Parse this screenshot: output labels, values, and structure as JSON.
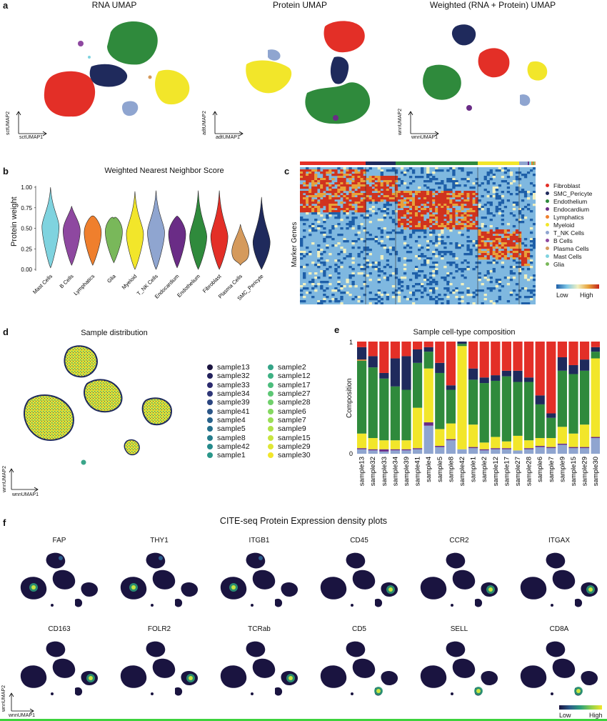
{
  "panel_letters": {
    "a": "a",
    "b": "b",
    "c": "c",
    "d": "d",
    "e": "e",
    "f": "f"
  },
  "panel_a": {
    "titles": [
      "RNA UMAP",
      "Protein UMAP",
      "Weighted (RNA + Protein) UMAP"
    ],
    "axes": [
      {
        "x": "sctUMAP1",
        "y": "sctUMAP2"
      },
      {
        "x": "adtUMAP1",
        "y": "adtUMAP2"
      },
      {
        "x": "wnnUMAP1",
        "y": "wnnUMAP2"
      }
    ]
  },
  "colors": {
    "Fibroblast": "#e32f27",
    "SMC_Pericyte": "#1f2a5c",
    "Endothelium": "#2f8a3c",
    "Endocardium": "#6a2c86",
    "Lymphatics": "#ef7f2d",
    "Myeloid": "#f2e62a",
    "T_NK Cells": "#8fa5d0",
    "B Cells": "#8e48a0",
    "Plasma Cells": "#d59a5c",
    "Mast Cells": "#7fd3df",
    "Glia": "#79b85a"
  },
  "chart_data": [
    {
      "type": "violin",
      "panel": "b",
      "title": "Weighted Nearest Neighbor Score",
      "ylabel": "Protein weight",
      "ylim": [
        0,
        1
      ],
      "yticks": [
        "0.00",
        "0.25",
        "0.50",
        "0.75",
        "1.00"
      ],
      "categories": [
        "Mast Cells",
        "B Cells",
        "Lymphatics",
        "Glia",
        "Myeloid",
        "T_NK Cells",
        "Endocardium",
        "Endothelium",
        "Fibroblast",
        "Plasma Cells",
        "SMC_Pericyte"
      ],
      "medians": [
        0.52,
        0.47,
        0.45,
        0.46,
        0.43,
        0.45,
        0.43,
        0.4,
        0.4,
        0.22,
        0.33
      ],
      "max": [
        1.0,
        0.77,
        0.65,
        0.62,
        0.95,
        0.96,
        0.65,
        0.96,
        0.96,
        0.55,
        0.88
      ],
      "min": [
        0.02,
        0.05,
        0.05,
        0.08,
        0.0,
        0.0,
        0.02,
        0.0,
        0.0,
        0.05,
        0.0
      ]
    },
    {
      "type": "heatmap",
      "panel": "c",
      "ylabel": "Marker Genes",
      "legend": [
        "Fibroblast",
        "SMC_Pericyte",
        "Endothelium",
        "Endocardium",
        "Lymphatics",
        "Myeloid",
        "T_NK Cells",
        "B Cells",
        "Plasma Cells",
        "Mast Cells",
        "Glia"
      ],
      "colorbar": {
        "low": "Low",
        "high": "High"
      }
    },
    {
      "type": "scatter",
      "panel": "d",
      "title": "Sample distribution",
      "xlabel": "wnnUMAP1",
      "ylabel": "wnnUMAP2",
      "legend_col1": [
        "sample13",
        "sample32",
        "sample33",
        "sample34",
        "sample39",
        "sample41",
        "sample4",
        "sample5",
        "sample8",
        "sample42",
        "sample1"
      ],
      "legend_col2": [
        "sample2",
        "sample12",
        "sample17",
        "sample27",
        "sample28",
        "sample6",
        "sample7",
        "sample9",
        "sample15",
        "sample29",
        "sample30"
      ]
    },
    {
      "type": "bar",
      "stacked": true,
      "panel": "e",
      "title": "Sample cell-type composition",
      "ylabel": "Composition",
      "ylim": [
        0,
        1
      ],
      "yticks": [
        "0",
        "1"
      ],
      "categories": [
        "sample13",
        "sample32",
        "sample33",
        "sample34",
        "sample39",
        "sample41",
        "sample4",
        "sample5",
        "sample8",
        "sample42",
        "sample1",
        "sample2",
        "sample12",
        "sample17",
        "sample27",
        "sample28",
        "sample6",
        "sample7",
        "sample9",
        "sample15",
        "sample29",
        "sample30"
      ],
      "series": [
        {
          "name": "T_NK Cells",
          "values": [
            0.04,
            0.03,
            0.02,
            0.03,
            0.03,
            0.04,
            0.25,
            0.06,
            0.12,
            0.04,
            0.05,
            0.03,
            0.04,
            0.04,
            0.03,
            0.04,
            0.06,
            0.05,
            0.08,
            0.05,
            0.05,
            0.14
          ]
        },
        {
          "name": "Endocardium",
          "values": [
            0.01,
            0.01,
            0.02,
            0.01,
            0.01,
            0.01,
            0.03,
            0.01,
            0.01,
            0.0,
            0.01,
            0.01,
            0.01,
            0.01,
            0.0,
            0.01,
            0.01,
            0.01,
            0.01,
            0.01,
            0.01,
            0.01
          ]
        },
        {
          "name": "Myeloid",
          "values": [
            0.13,
            0.1,
            0.08,
            0.08,
            0.08,
            0.36,
            0.48,
            0.15,
            0.14,
            0.92,
            0.2,
            0.06,
            0.1,
            0.06,
            0.13,
            0.07,
            0.07,
            0.08,
            0.15,
            0.12,
            0.2,
            0.7
          ]
        },
        {
          "name": "Endothelium",
          "values": [
            0.65,
            0.63,
            0.55,
            0.48,
            0.45,
            0.4,
            0.15,
            0.5,
            0.3,
            0.02,
            0.4,
            0.53,
            0.5,
            0.58,
            0.48,
            0.52,
            0.3,
            0.18,
            0.5,
            0.53,
            0.48,
            0.06
          ]
        },
        {
          "name": "Lymphatics",
          "values": [
            0.01,
            0.0,
            0.0,
            0.0,
            0.0,
            0.0,
            0.0,
            0.0,
            0.0,
            0.0,
            0.0,
            0.0,
            0.0,
            0.0,
            0.0,
            0.0,
            0.0,
            0.0,
            0.0,
            0.0,
            0.0,
            0.0
          ]
        },
        {
          "name": "SMC_Pericyte",
          "values": [
            0.11,
            0.1,
            0.05,
            0.25,
            0.3,
            0.12,
            0.04,
            0.09,
            0.04,
            0.02,
            0.1,
            0.05,
            0.05,
            0.05,
            0.1,
            0.04,
            0.08,
            0.04,
            0.12,
            0.08,
            0.1,
            0.04
          ]
        },
        {
          "name": "Fibroblast",
          "values": [
            0.05,
            0.13,
            0.28,
            0.15,
            0.13,
            0.07,
            0.05,
            0.19,
            0.39,
            0.0,
            0.24,
            0.32,
            0.3,
            0.26,
            0.26,
            0.32,
            0.48,
            0.64,
            0.14,
            0.21,
            0.16,
            0.05
          ]
        }
      ]
    }
  ],
  "panel_f": {
    "title": "CITE-seq Protein Expression density plots",
    "proteins_row1": [
      "FAP",
      "THY1",
      "ITGB1",
      "CD45",
      "CCR2",
      "ITGAX"
    ],
    "proteins_row2": [
      "CD163",
      "FOLR2",
      "TCRab",
      "CD5",
      "SELL",
      "CD8A"
    ],
    "hotspot_cluster_row1": [
      "left",
      "left",
      "left",
      "right",
      "right",
      "right"
    ],
    "hotspot_cluster_row2": [
      "right",
      "right",
      "right",
      "small",
      "small",
      "small"
    ],
    "xlabel": "wnnUMAP1",
    "ylabel": "wnnUMAP2",
    "colorbar": {
      "low": "Low",
      "high": "High"
    }
  }
}
